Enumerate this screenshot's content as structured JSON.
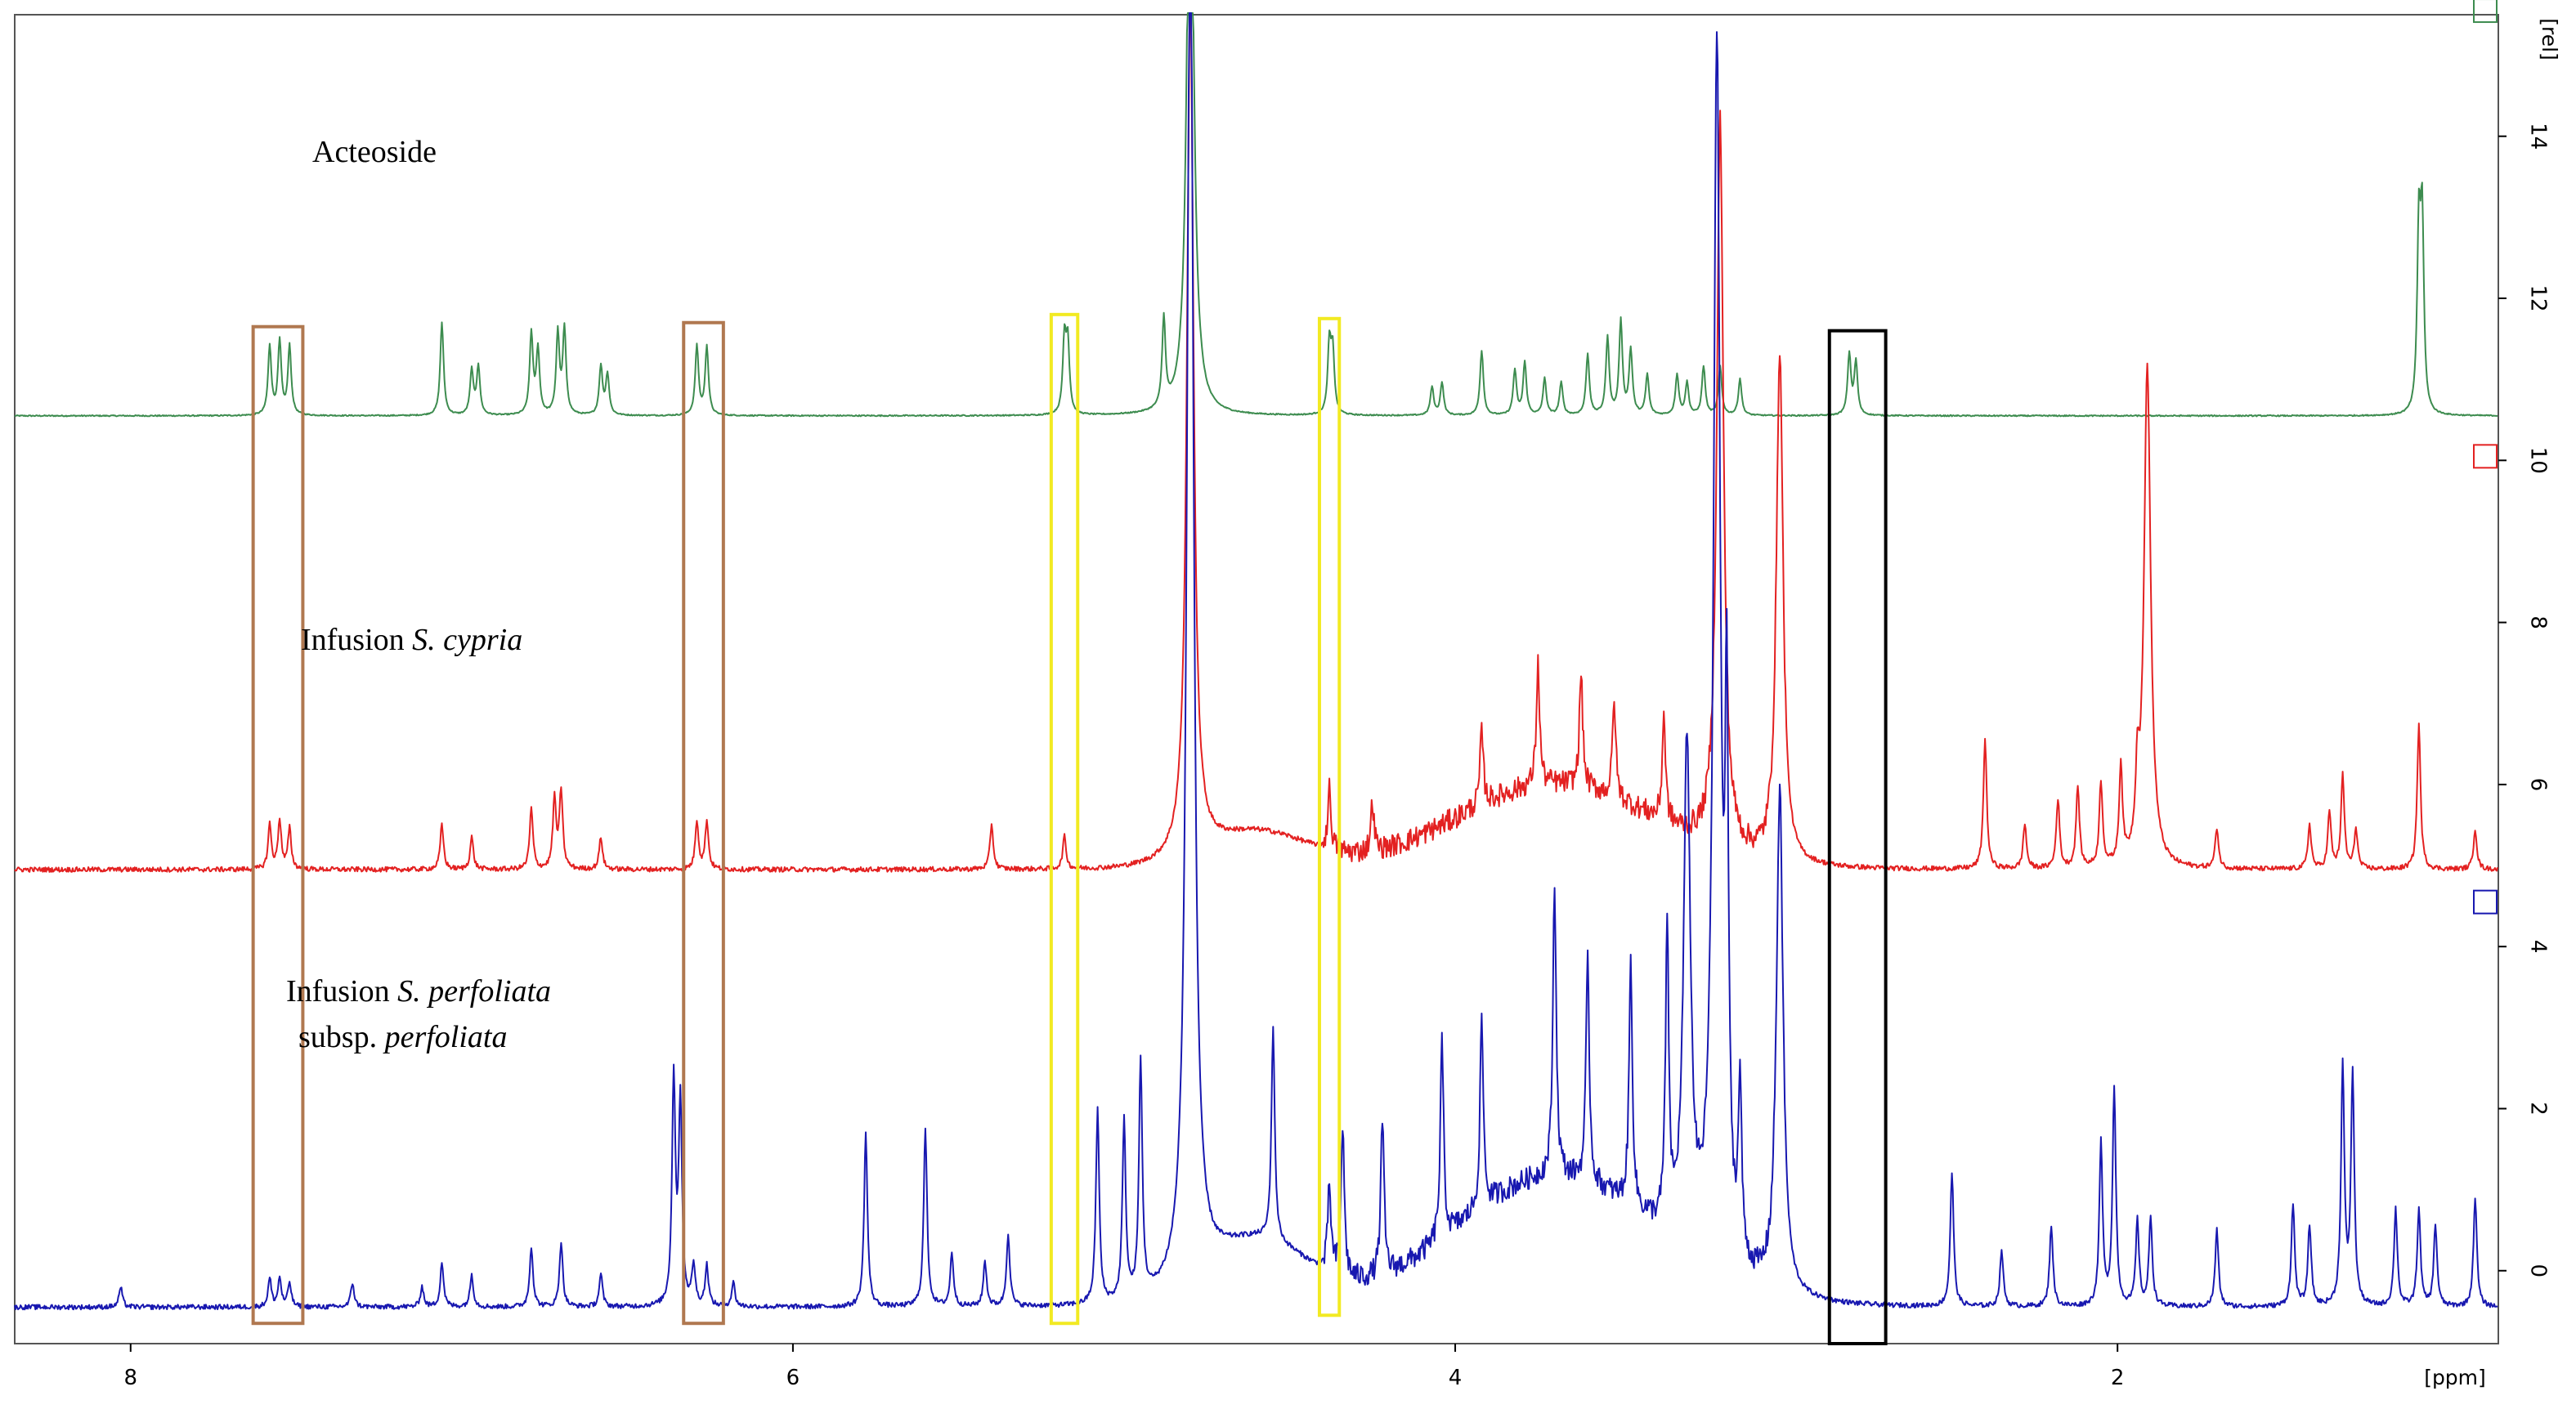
{
  "chart_data": {
    "type": "line",
    "xlabel": "[ppm]",
    "ylabel": "[rel]",
    "x_reversed": true,
    "xlim": [
      8.35,
      0.85
    ],
    "ylim": [
      -0.9,
      15.5
    ],
    "x_ticks": [
      8,
      6,
      4,
      2
    ],
    "y_ticks": [
      0,
      2,
      4,
      6,
      8,
      10,
      12,
      14
    ],
    "grid": false,
    "series": [
      {
        "name_parts": [
          {
            "text": "Acteoside",
            "italic": false
          }
        ],
        "color": "#3d8c4f",
        "baseline": 10.55,
        "marker_y": 15.55,
        "peaks": [
          [
            7.58,
            0.85
          ],
          [
            7.55,
            0.9
          ],
          [
            7.52,
            0.85
          ],
          [
            7.06,
            1.15
          ],
          [
            6.97,
            0.55
          ],
          [
            6.95,
            0.6
          ],
          [
            6.79,
            1.0
          ],
          [
            6.77,
            0.8
          ],
          [
            6.71,
            1.0
          ],
          [
            6.69,
            1.05
          ],
          [
            6.58,
            0.6
          ],
          [
            6.56,
            0.5
          ],
          [
            6.29,
            0.85
          ],
          [
            6.26,
            0.85
          ],
          [
            5.18,
            0.9
          ],
          [
            5.17,
            0.85
          ],
          [
            4.88,
            1.1
          ],
          [
            4.8,
            8.0
          ],
          [
            4.38,
            0.85
          ],
          [
            4.37,
            0.75
          ],
          [
            4.07,
            0.35
          ],
          [
            4.04,
            0.4
          ],
          [
            3.92,
            0.8
          ],
          [
            3.82,
            0.55
          ],
          [
            3.79,
            0.65
          ],
          [
            3.73,
            0.45
          ],
          [
            3.68,
            0.4
          ],
          [
            3.6,
            0.75
          ],
          [
            3.54,
            0.95
          ],
          [
            3.5,
            1.15
          ],
          [
            3.47,
            0.8
          ],
          [
            3.42,
            0.5
          ],
          [
            3.33,
            0.5
          ],
          [
            3.3,
            0.4
          ],
          [
            3.25,
            0.6
          ],
          [
            3.2,
            0.6
          ],
          [
            3.14,
            0.45
          ],
          [
            2.81,
            0.75
          ],
          [
            2.79,
            0.65
          ],
          [
            1.09,
            2.2
          ],
          [
            1.08,
            2.3
          ]
        ]
      },
      {
        "name_parts": [
          {
            "text": "Infusion ",
            "italic": false
          },
          {
            "text": "S. cypria",
            "italic": true
          }
        ],
        "color": "#e32121",
        "baseline": 4.95,
        "marker_y": 10.05,
        "peaks": [
          [
            7.58,
            0.55
          ],
          [
            7.55,
            0.6
          ],
          [
            7.52,
            0.5
          ],
          [
            7.06,
            0.55
          ],
          [
            6.97,
            0.4
          ],
          [
            6.79,
            0.75
          ],
          [
            6.72,
            0.85
          ],
          [
            6.7,
            0.95
          ],
          [
            6.58,
            0.4
          ],
          [
            6.29,
            0.6
          ],
          [
            6.26,
            0.6
          ],
          [
            5.4,
            0.55
          ],
          [
            5.18,
            0.4
          ],
          [
            4.8,
            10.6
          ],
          [
            4.38,
            0.75
          ],
          [
            4.25,
            0.6
          ],
          [
            3.92,
            0.9
          ],
          [
            3.75,
            1.5
          ],
          [
            3.62,
            1.4
          ],
          [
            3.52,
            1.2
          ],
          [
            3.37,
            1.3
          ],
          [
            3.2,
            9.0
          ],
          [
            3.02,
            6.35
          ],
          [
            2.4,
            1.6
          ],
          [
            2.28,
            0.55
          ],
          [
            2.18,
            0.85
          ],
          [
            2.12,
            1.0
          ],
          [
            2.05,
            1.05
          ],
          [
            1.99,
            1.2
          ],
          [
            1.94,
            0.9
          ],
          [
            1.91,
            6.2
          ],
          [
            1.7,
            0.5
          ],
          [
            1.42,
            0.55
          ],
          [
            1.36,
            0.7
          ],
          [
            1.32,
            1.15
          ],
          [
            1.28,
            0.5
          ],
          [
            1.09,
            1.8
          ],
          [
            0.92,
            0.5
          ]
        ]
      },
      {
        "name_parts": [
          {
            "text": "Infusion ",
            "italic": false
          },
          {
            "text": "S. perfoliata",
            "italic": true
          },
          {
            "text": "subsp. ",
            "italic": false
          },
          {
            "text": "perfoliata",
            "italic": true
          }
        ],
        "color": "#1818b0",
        "baseline": -0.45,
        "marker_y": 4.55,
        "peaks": [
          [
            8.03,
            0.25
          ],
          [
            7.58,
            0.35
          ],
          [
            7.55,
            0.35
          ],
          [
            7.52,
            0.3
          ],
          [
            7.33,
            0.3
          ],
          [
            7.12,
            0.25
          ],
          [
            7.06,
            0.55
          ],
          [
            6.97,
            0.4
          ],
          [
            6.79,
            0.75
          ],
          [
            6.7,
            0.8
          ],
          [
            6.58,
            0.4
          ],
          [
            6.36,
            2.8
          ],
          [
            6.34,
            2.5
          ],
          [
            6.3,
            0.5
          ],
          [
            6.26,
            0.5
          ],
          [
            6.18,
            0.3
          ],
          [
            5.78,
            2.15
          ],
          [
            5.6,
            2.2
          ],
          [
            5.52,
            0.65
          ],
          [
            5.42,
            0.55
          ],
          [
            5.35,
            0.9
          ],
          [
            5.08,
            2.4
          ],
          [
            5.0,
            2.2
          ],
          [
            4.95,
            2.9
          ],
          [
            4.8,
            17.2
          ],
          [
            4.55,
            2.6
          ],
          [
            4.38,
            1.05
          ],
          [
            4.34,
            1.85
          ],
          [
            4.22,
            1.9
          ],
          [
            4.04,
            2.4
          ],
          [
            3.92,
            2.3
          ],
          [
            3.7,
            3.6
          ],
          [
            3.6,
            2.7
          ],
          [
            3.47,
            3.0
          ],
          [
            3.36,
            3.6
          ],
          [
            3.3,
            6.2
          ],
          [
            3.21,
            15.0
          ],
          [
            3.18,
            6.0
          ],
          [
            3.14,
            2.1
          ],
          [
            3.02,
            6.2
          ],
          [
            2.5,
            1.65
          ],
          [
            2.35,
            0.7
          ],
          [
            2.2,
            1.0
          ],
          [
            2.05,
            2.0
          ],
          [
            2.01,
            2.7
          ],
          [
            1.94,
            1.05
          ],
          [
            1.9,
            1.1
          ],
          [
            1.7,
            0.95
          ],
          [
            1.47,
            1.25
          ],
          [
            1.42,
            1.0
          ],
          [
            1.32,
            2.95
          ],
          [
            1.29,
            2.85
          ],
          [
            1.16,
            1.2
          ],
          [
            1.09,
            1.2
          ],
          [
            1.04,
            1.0
          ],
          [
            0.92,
            1.35
          ]
        ]
      }
    ],
    "annotation_boxes": [
      {
        "color": "#b07850",
        "x": [
          7.63,
          7.48
        ],
        "y": [
          -0.65,
          11.65
        ]
      },
      {
        "color": "#b07850",
        "x": [
          6.33,
          6.21
        ],
        "y": [
          -0.65,
          11.7
        ]
      },
      {
        "color": "#f2ea22",
        "x": [
          5.22,
          5.14
        ],
        "y": [
          -0.65,
          11.8
        ]
      },
      {
        "color": "#f2ea22",
        "x": [
          4.41,
          4.35
        ],
        "y": [
          -0.55,
          11.75
        ]
      },
      {
        "color": "#000000",
        "x": [
          2.87,
          2.7
        ],
        "y": [
          -0.9,
          11.6
        ]
      }
    ]
  }
}
